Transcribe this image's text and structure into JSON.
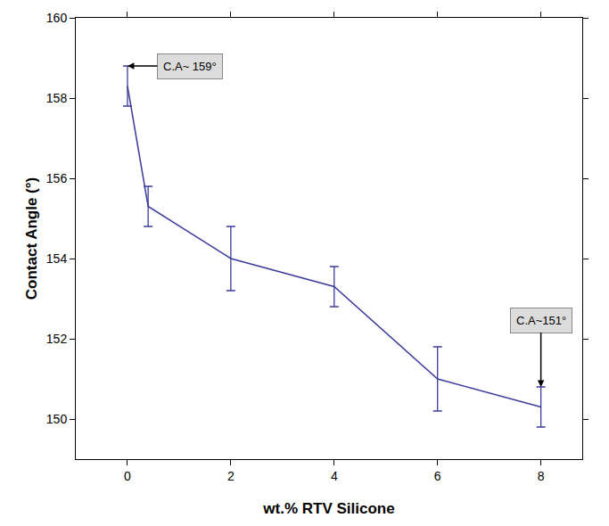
{
  "chart_data": {
    "type": "line",
    "x_label": "wt.% RTV Silicone",
    "y_label": "Contact Angle (°)",
    "x": [
      0,
      0.4,
      2,
      4,
      6,
      8
    ],
    "series": [
      {
        "name": "Contact Angle",
        "color": "#3b3b9c",
        "values": [
          158.3,
          155.3,
          154.0,
          153.3,
          151.0,
          150.3
        ],
        "errors": [
          0.5,
          0.5,
          0.8,
          0.5,
          0.8,
          0.5
        ],
        "marker": "none",
        "line_style": "solid"
      }
    ],
    "xlim": [
      -1,
      8.8
    ],
    "xticks": [
      0,
      2,
      4,
      6,
      8
    ],
    "ylim": [
      149,
      160
    ],
    "yticks": [
      150,
      152,
      154,
      156,
      158,
      160
    ],
    "grid": false,
    "annotations": [
      {
        "text": "C.A~ 159°",
        "x": 0,
        "y": 158.8
      },
      {
        "text": "C.A~151°",
        "x": 8,
        "y": 150.8
      }
    ]
  }
}
